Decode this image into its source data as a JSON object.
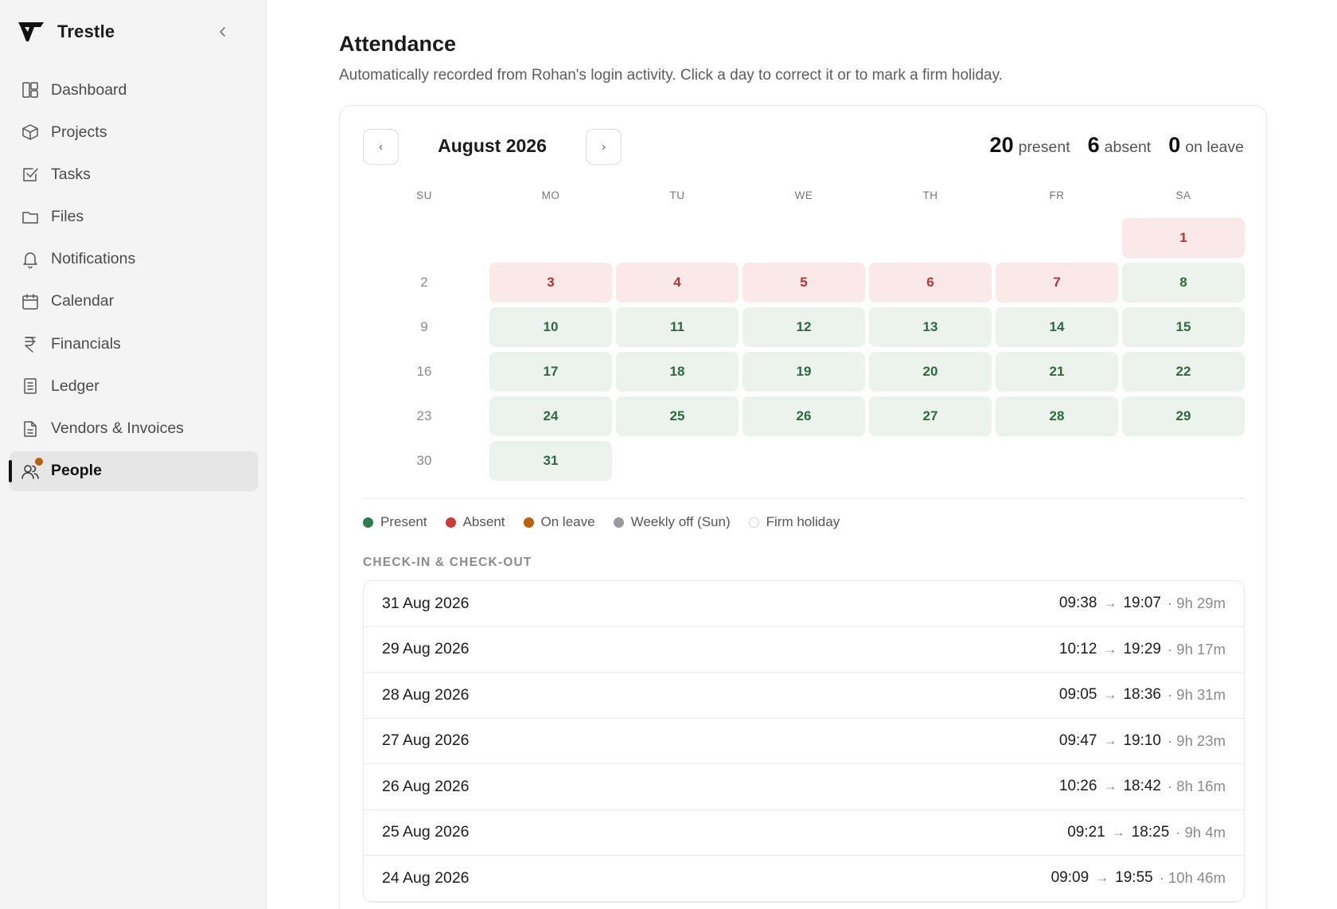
{
  "app": {
    "name": "Trestle"
  },
  "sidebar": {
    "items": [
      {
        "id": "dashboard",
        "label": "Dashboard",
        "icon": "dashboard-icon",
        "active": false
      },
      {
        "id": "projects",
        "label": "Projects",
        "icon": "box-icon",
        "active": false
      },
      {
        "id": "tasks",
        "label": "Tasks",
        "icon": "checkbox-icon",
        "active": false
      },
      {
        "id": "files",
        "label": "Files",
        "icon": "folder-icon",
        "active": false
      },
      {
        "id": "notifications",
        "label": "Notifications",
        "icon": "bell-icon",
        "active": false
      },
      {
        "id": "calendar",
        "label": "Calendar",
        "icon": "calendar-icon",
        "active": false
      },
      {
        "id": "financials",
        "label": "Financials",
        "icon": "rupee-icon",
        "active": false
      },
      {
        "id": "ledger",
        "label": "Ledger",
        "icon": "ledger-icon",
        "active": false
      },
      {
        "id": "vendors",
        "label": "Vendors & Invoices",
        "icon": "invoice-icon",
        "active": false
      },
      {
        "id": "people",
        "label": "People",
        "icon": "people-icon",
        "active": true,
        "badge": true
      }
    ],
    "badge_color": "#b8620a"
  },
  "page": {
    "title": "Attendance",
    "subtitle": "Automatically recorded from Rohan's login activity. Click a day to correct it or to mark a firm holiday."
  },
  "calendar": {
    "month_label": "August 2026",
    "prev_glyph": "‹",
    "next_glyph": "›",
    "stats": [
      {
        "value": "20",
        "label": "present"
      },
      {
        "value": "6",
        "label": "absent"
      },
      {
        "value": "0",
        "label": "on leave"
      }
    ],
    "weekdays": [
      "SU",
      "MO",
      "TU",
      "WE",
      "TH",
      "FR",
      "SA"
    ],
    "weeks": [
      [
        null,
        null,
        null,
        null,
        null,
        null,
        {
          "day": "1",
          "status": "absent"
        }
      ],
      [
        {
          "day": "2",
          "status": "off"
        },
        {
          "day": "3",
          "status": "absent"
        },
        {
          "day": "4",
          "status": "absent"
        },
        {
          "day": "5",
          "status": "absent"
        },
        {
          "day": "6",
          "status": "absent"
        },
        {
          "day": "7",
          "status": "absent"
        },
        {
          "day": "8",
          "status": "present"
        }
      ],
      [
        {
          "day": "9",
          "status": "off"
        },
        {
          "day": "10",
          "status": "present"
        },
        {
          "day": "11",
          "status": "present"
        },
        {
          "day": "12",
          "status": "present"
        },
        {
          "day": "13",
          "status": "present"
        },
        {
          "day": "14",
          "status": "present"
        },
        {
          "day": "15",
          "status": "present"
        }
      ],
      [
        {
          "day": "16",
          "status": "off"
        },
        {
          "day": "17",
          "status": "present"
        },
        {
          "day": "18",
          "status": "present"
        },
        {
          "day": "19",
          "status": "present"
        },
        {
          "day": "20",
          "status": "present"
        },
        {
          "day": "21",
          "status": "present"
        },
        {
          "day": "22",
          "status": "present"
        }
      ],
      [
        {
          "day": "23",
          "status": "off"
        },
        {
          "day": "24",
          "status": "present"
        },
        {
          "day": "25",
          "status": "present"
        },
        {
          "day": "26",
          "status": "present"
        },
        {
          "day": "27",
          "status": "present"
        },
        {
          "day": "28",
          "status": "present"
        },
        {
          "day": "29",
          "status": "present"
        }
      ],
      [
        {
          "day": "30",
          "status": "off"
        },
        {
          "day": "31",
          "status": "present"
        },
        null,
        null,
        null,
        null,
        null
      ]
    ]
  },
  "legend": [
    {
      "label": "Present",
      "color": "#2e7d4f"
    },
    {
      "label": "Absent",
      "color": "#cc3a3a"
    },
    {
      "label": "On leave",
      "color": "#b8620a"
    },
    {
      "label": "Weekly off (Sun)",
      "color": "#9a9aa0"
    },
    {
      "label": "Firm holiday",
      "color": "#ffffff",
      "outline": "#d6d6d6"
    }
  ],
  "log": {
    "section_label": "CHECK-IN & CHECK-OUT",
    "arrow": "→",
    "rows": [
      {
        "date": "31 Aug 2026",
        "in": "09:38",
        "out": "19:07",
        "duration": "· 9h 29m"
      },
      {
        "date": "29 Aug 2026",
        "in": "10:12",
        "out": "19:29",
        "duration": "· 9h 17m"
      },
      {
        "date": "28 Aug 2026",
        "in": "09:05",
        "out": "18:36",
        "duration": "· 9h 31m"
      },
      {
        "date": "27 Aug 2026",
        "in": "09:47",
        "out": "19:10",
        "duration": "· 9h 23m"
      },
      {
        "date": "26 Aug 2026",
        "in": "10:26",
        "out": "18:42",
        "duration": "· 8h 16m"
      },
      {
        "date": "25 Aug 2026",
        "in": "09:21",
        "out": "18:25",
        "duration": "· 9h 4m"
      },
      {
        "date": "24 Aug 2026",
        "in": "09:09",
        "out": "19:55",
        "duration": "· 10h 46m"
      }
    ]
  }
}
